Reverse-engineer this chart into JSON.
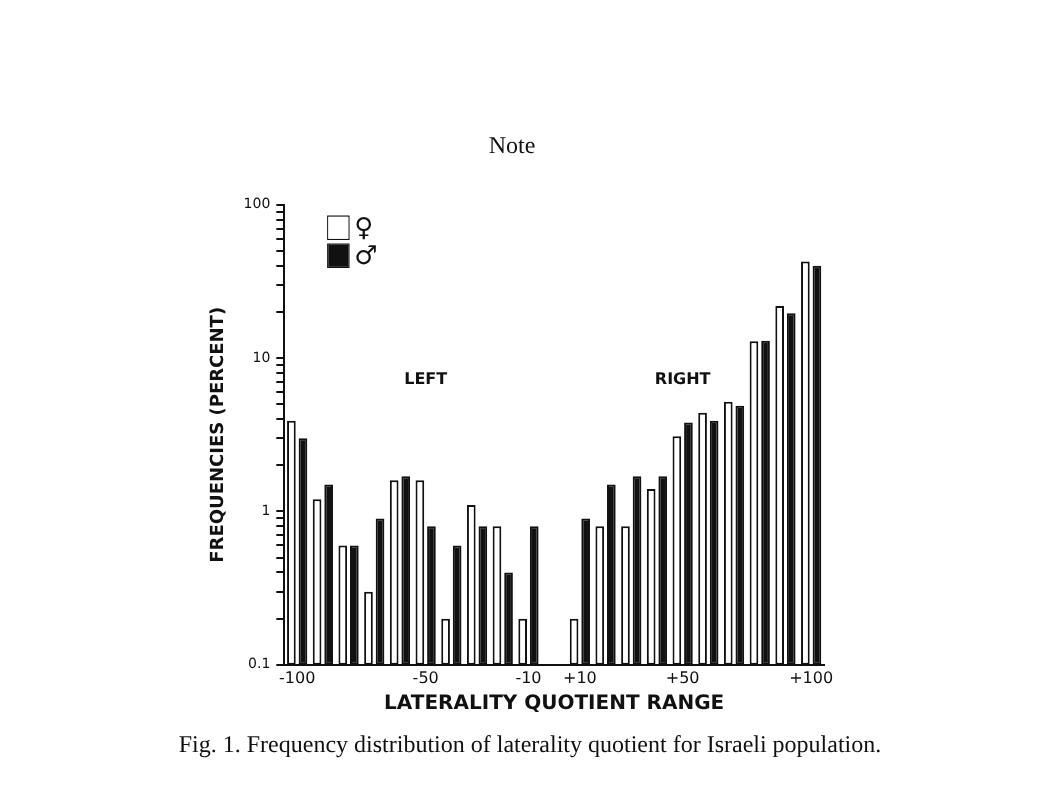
{
  "chart_data": {
    "type": "bar",
    "title": "Note",
    "xlabel": "LATERALITY QUOTIENT RANGE",
    "ylabel": "FREQUENCIES (PERCENT)",
    "annotations": [
      "LEFT",
      "RIGHT",
      "Fig. 1. Frequency distribution of laterality quotient for Israeli population."
    ],
    "categories": [
      "-100",
      null,
      null,
      null,
      null,
      "-50",
      null,
      null,
      null,
      "-10",
      null,
      "+10",
      null,
      null,
      null,
      "+50",
      null,
      null,
      null,
      null,
      "+100"
    ],
    "series": [
      {
        "name": "♀",
        "color": "#ffffff",
        "values": [
          3.9,
          1.2,
          0.6,
          0.3,
          1.6,
          1.6,
          0.2,
          1.1,
          0.8,
          0.2,
          null,
          0.2,
          0.8,
          0.8,
          1.4,
          3.1,
          4.4,
          5.2,
          12.9,
          21.9,
          42.6
        ]
      },
      {
        "name": "♂",
        "color": "#111111",
        "values": [
          3.0,
          1.5,
          0.6,
          0.9,
          1.7,
          0.8,
          0.6,
          0.8,
          0.4,
          0.8,
          null,
          0.9,
          1.5,
          1.7,
          1.7,
          3.8,
          3.9,
          4.9,
          13,
          19.6,
          40
        ]
      }
    ],
    "log": true,
    "ylim": [
      0.1,
      100
    ],
    "yticks": [
      0.1,
      {
        "value": 0.2,
        "label": null
      },
      {
        "value": 0.3,
        "label": null
      },
      {
        "value": 0.4,
        "label": null
      },
      {
        "value": 0.5,
        "label": null
      },
      {
        "value": 0.6,
        "label": null
      },
      {
        "value": 0.7,
        "label": null
      },
      {
        "value": 0.8,
        "label": null
      },
      {
        "value": 0.9,
        "label": null
      },
      1,
      {
        "value": 2,
        "label": null
      },
      {
        "value": 3,
        "label": null
      },
      {
        "value": 4,
        "label": null
      },
      {
        "value": 5,
        "label": null
      },
      {
        "value": 6,
        "label": null
      },
      {
        "value": 7,
        "label": null
      },
      {
        "value": 8,
        "label": null
      },
      {
        "value": 9,
        "label": null
      },
      10,
      {
        "value": 20,
        "label": null
      },
      {
        "value": 30,
        "label": null
      },
      {
        "value": 40,
        "label": null
      },
      {
        "value": 50,
        "label": null
      },
      {
        "value": 60,
        "label": null
      },
      {
        "value": 70,
        "label": null
      },
      {
        "value": 80,
        "label": null
      },
      {
        "value": 90,
        "label": null
      },
      100
    ],
    "legend": "top left",
    "grid": false
  }
}
